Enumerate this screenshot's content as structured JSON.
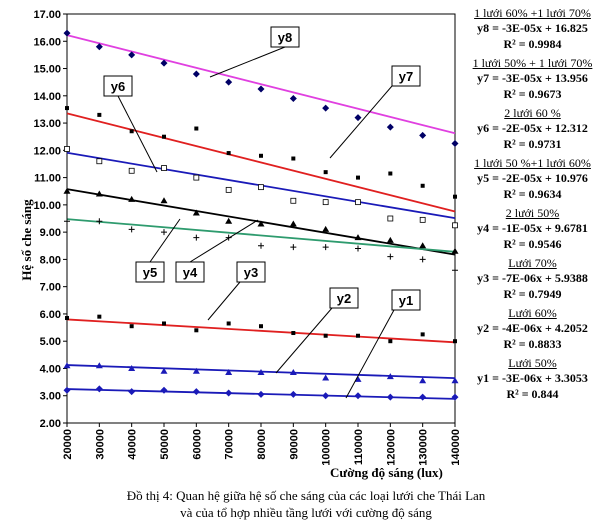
{
  "chart_data": {
    "type": "scatter",
    "xlabel": "Cường độ sáng (lux)",
    "ylabel": "Hệ số che sáng",
    "xlim": [
      20000,
      140000
    ],
    "ylim": [
      2.0,
      17.0
    ],
    "x_ticks": [
      "20000",
      "30000",
      "40000",
      "50000",
      "60000",
      "70000",
      "80000",
      "90000",
      "100000",
      "110000",
      "120000",
      "130000",
      "140000"
    ],
    "y_ticks": [
      "2.00",
      "3.00",
      "4.00",
      "5.00",
      "6.00",
      "7.00",
      "8.00",
      "9.00",
      "10.00",
      "11.00",
      "12.00",
      "13.00",
      "14.00",
      "15.00",
      "16.00",
      "17.00"
    ],
    "x": [
      20000,
      30000,
      40000,
      50000,
      60000,
      70000,
      80000,
      90000,
      100000,
      110000,
      120000,
      130000,
      140000
    ],
    "series": [
      {
        "name": "y8",
        "color": "#e040e0",
        "marker": "diamond",
        "values": [
          16.3,
          15.8,
          15.5,
          15.2,
          14.8,
          14.5,
          14.25,
          13.9,
          13.55,
          13.2,
          12.85,
          12.55,
          12.25
        ],
        "fit": [
          16.825,
          -3e-05
        ]
      },
      {
        "name": "y7",
        "color": "#e02020",
        "marker": "square",
        "values": [
          13.55,
          13.3,
          12.7,
          12.5,
          12.8,
          11.9,
          11.8,
          11.7,
          11.2,
          11.0,
          11.15,
          10.7,
          10.3
        ],
        "fit": [
          13.956,
          -3e-05
        ]
      },
      {
        "name": "y6",
        "color": "#1a1ab8",
        "marker": "open-square",
        "values": [
          12.05,
          11.6,
          11.25,
          11.35,
          11.0,
          10.55,
          10.65,
          10.15,
          10.1,
          10.1,
          9.5,
          9.45,
          9.25
        ],
        "fit": [
          12.312,
          -2e-05
        ]
      },
      {
        "name": "y5",
        "color": "#000000",
        "marker": "triangle",
        "values": [
          10.5,
          10.4,
          10.2,
          10.15,
          9.7,
          9.4,
          9.3,
          9.3,
          9.1,
          8.8,
          8.7,
          8.5,
          8.3
        ],
        "fit": [
          10.976,
          -2e-05
        ]
      },
      {
        "name": "y4",
        "color": "#2e9b6e",
        "marker": "plus",
        "values": [
          9.4,
          9.4,
          9.1,
          9.0,
          8.8,
          8.8,
          8.5,
          8.45,
          8.45,
          8.4,
          8.1,
          8.0,
          7.6
        ],
        "fit": [
          9.6781,
          -1e-05
        ]
      },
      {
        "name": "y3",
        "color": "#e02020",
        "marker": "square",
        "values": [
          5.85,
          5.9,
          5.55,
          5.65,
          5.4,
          5.65,
          5.55,
          5.3,
          5.2,
          5.2,
          5.0,
          5.25,
          5.0
        ],
        "fit": [
          5.9388,
          -7e-06
        ]
      },
      {
        "name": "y2",
        "color": "#1a1ab8",
        "marker": "triangle",
        "values": [
          4.1,
          4.1,
          4.0,
          3.9,
          3.9,
          3.85,
          3.85,
          3.85,
          3.65,
          3.6,
          3.7,
          3.55,
          3.55
        ],
        "fit": [
          4.2052,
          -4e-06
        ]
      },
      {
        "name": "y1",
        "color": "#1a1ab8",
        "marker": "diamond",
        "values": [
          3.2,
          3.25,
          3.15,
          3.2,
          3.15,
          3.1,
          3.05,
          3.05,
          3.0,
          3.0,
          2.95,
          2.95,
          2.95
        ],
        "fit": [
          3.3053,
          -3e-06
        ]
      }
    ],
    "series_labels": [
      {
        "name": "y8",
        "text": "y8"
      },
      {
        "name": "y7",
        "text": "y7"
      },
      {
        "name": "y6",
        "text": "y6"
      },
      {
        "name": "y5",
        "text": "y5"
      },
      {
        "name": "y4",
        "text": "y4"
      },
      {
        "name": "y3",
        "text": "y3"
      },
      {
        "name": "y2",
        "text": "y2"
      },
      {
        "name": "y1",
        "text": "y1"
      }
    ],
    "equations": [
      {
        "title": "1 lưới 60% +1 lưới 70%",
        "formula": "y8 = -3E-05x + 16.825",
        "r2": "R² = 0.9984"
      },
      {
        "title": "1 lưới 50% + 1 lưới 70%",
        "formula": "y7 = -3E-05x + 13.956",
        "r2": "R² = 0.9673"
      },
      {
        "title": "2 lưới 60 %",
        "formula": "y6 = -2E-05x + 12.312",
        "r2": "R² = 0.9731"
      },
      {
        "title": "1 lưới 50 %+1 lưới 60%",
        "formula": "y5 = -2E-05x + 10.976",
        "r2": "R² = 0.9634"
      },
      {
        "title": "2 lưới 50%",
        "formula": "y4 = -1E-05x + 9.6781",
        "r2": "R² = 0.9546"
      },
      {
        "title": "Lưới 70%",
        "formula": "y3 = -7E-06x + 5.9388",
        "r2": "R² = 0.7949"
      },
      {
        "title": "Lưới 60%",
        "formula": "y2 = -4E-06x + 4.2052",
        "r2": "R² = 0.8833"
      },
      {
        "title": "Lưới 50%",
        "formula": "y1 = -3E-06x + 3.3053",
        "r2": "R² = 0.844"
      }
    ],
    "grid": false,
    "legend": "right"
  },
  "caption": {
    "line1": "Đồ thị 4:  Quan hệ giữa hệ số che sáng của các loại lưới che Thái Lan",
    "line2": "và của tổ hợp nhiều tầng lưới với cường độ sáng"
  }
}
